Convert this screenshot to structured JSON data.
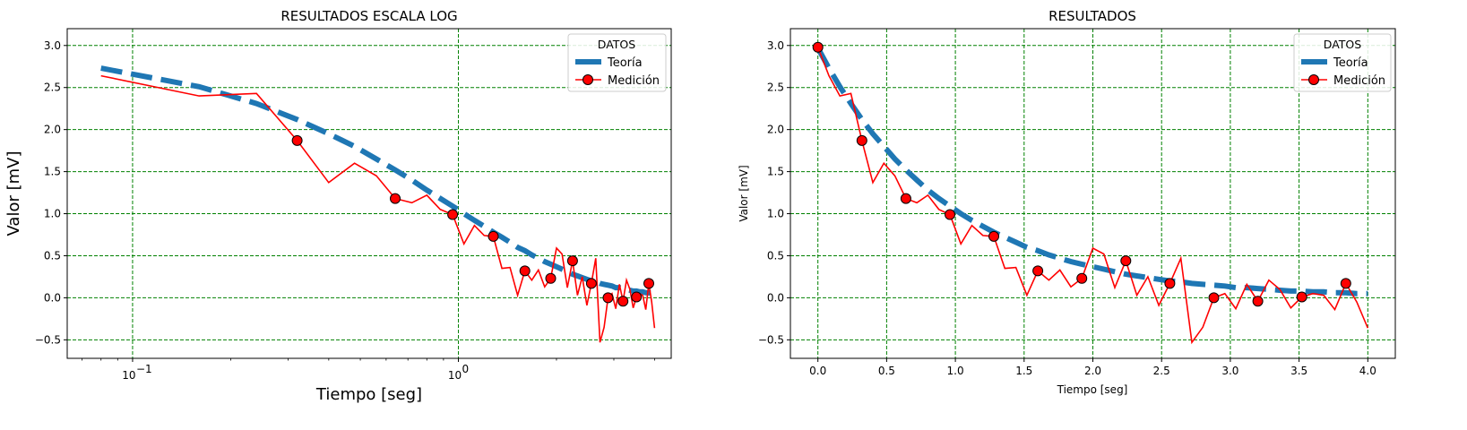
{
  "chart_data": [
    {
      "type": "line",
      "title": "RESULTADOS ESCALA LOG",
      "xlabel": "Tiempo [seg]",
      "ylabel": "Valor [mV]",
      "xscale": "log",
      "xlim": [
        0.063,
        4.5
      ],
      "ylim": [
        -0.72,
        3.2
      ],
      "xticks": [
        0.1,
        1
      ],
      "xtick_labels": [
        "10",
        "10"
      ],
      "xtick_exponents": [
        "−1",
        "0"
      ],
      "yticks": [
        -0.5,
        0.0,
        0.5,
        1.0,
        1.5,
        2.0,
        2.5,
        3.0
      ],
      "ytick_labels": [
        "−0.5",
        "0.0",
        "0.5",
        "1.0",
        "1.5",
        "2.0",
        "2.5",
        "3.0"
      ],
      "grid": true,
      "legend": {
        "title": "DATOS",
        "position": "top-right",
        "entries": [
          "Teoría",
          "Medición"
        ]
      }
    },
    {
      "type": "line",
      "title": "RESULTADOS",
      "xlabel": "Tiempo [seg]",
      "ylabel": "Valor [mV]",
      "xscale": "linear",
      "xlim": [
        -0.2,
        4.2
      ],
      "ylim": [
        -0.72,
        3.2
      ],
      "xticks": [
        0.0,
        0.5,
        1.0,
        1.5,
        2.0,
        2.5,
        3.0,
        3.5,
        4.0
      ],
      "xtick_labels": [
        "0.0",
        "0.5",
        "1.0",
        "1.5",
        "2.0",
        "2.5",
        "3.0",
        "3.5",
        "4.0"
      ],
      "yticks": [
        -0.5,
        0.0,
        0.5,
        1.0,
        1.5,
        2.0,
        2.5,
        3.0
      ],
      "ytick_labels": [
        "−0.5",
        "0.0",
        "0.5",
        "1.0",
        "1.5",
        "2.0",
        "2.5",
        "3.0"
      ],
      "grid": true,
      "legend": {
        "title": "DATOS",
        "position": "top-right",
        "entries": [
          "Teoría",
          "Medición"
        ]
      }
    }
  ],
  "series": {
    "teoria": {
      "name": "Teoría",
      "color": "#1f77b4",
      "x": [
        0.0,
        0.08,
        0.16,
        0.24,
        0.32,
        0.4,
        0.48,
        0.56,
        0.64,
        0.72,
        0.8,
        0.88,
        0.96,
        1.04,
        1.12,
        1.2,
        1.28,
        1.36,
        1.44,
        1.52,
        1.6,
        1.68,
        1.76,
        1.84,
        1.92,
        2.0,
        2.08,
        2.16,
        2.24,
        2.32,
        2.4,
        2.48,
        2.56,
        2.64,
        2.72,
        2.8,
        2.88,
        2.96,
        3.04,
        3.12,
        3.2,
        3.28,
        3.36,
        3.44,
        3.52,
        3.6,
        3.68,
        3.76,
        3.84,
        3.92,
        4.0
      ],
      "y": [
        2.97,
        2.73,
        2.51,
        2.31,
        2.12,
        1.95,
        1.8,
        1.65,
        1.52,
        1.4,
        1.28,
        1.18,
        1.09,
        1.0,
        0.92,
        0.85,
        0.78,
        0.72,
        0.66,
        0.6,
        0.56,
        0.51,
        0.47,
        0.43,
        0.4,
        0.37,
        0.34,
        0.31,
        0.28,
        0.26,
        0.24,
        0.22,
        0.2,
        0.19,
        0.17,
        0.16,
        0.15,
        0.14,
        0.12,
        0.12,
        0.11,
        0.1,
        0.09,
        0.08,
        0.08,
        0.07,
        0.07,
        0.06,
        0.06,
        0.05,
        0.05
      ]
    },
    "medicion": {
      "name": "Medición",
      "color": "#ff0000",
      "marker_face": "#ff0000",
      "marker_edge": "#000000",
      "x": [
        0.0,
        0.08,
        0.16,
        0.24,
        0.32,
        0.4,
        0.48,
        0.56,
        0.64,
        0.72,
        0.8,
        0.88,
        0.96,
        1.04,
        1.12,
        1.2,
        1.28,
        1.36,
        1.44,
        1.52,
        1.6,
        1.68,
        1.76,
        1.84,
        1.92,
        2.0,
        2.08,
        2.16,
        2.24,
        2.32,
        2.4,
        2.48,
        2.56,
        2.64,
        2.72,
        2.8,
        2.88,
        2.96,
        3.04,
        3.12,
        3.2,
        3.28,
        3.36,
        3.44,
        3.52,
        3.6,
        3.68,
        3.76,
        3.84,
        3.92,
        4.0
      ],
      "y": [
        2.98,
        2.64,
        2.4,
        2.43,
        1.87,
        1.37,
        1.6,
        1.45,
        1.18,
        1.13,
        1.22,
        1.05,
        0.99,
        0.64,
        0.86,
        0.74,
        0.73,
        0.35,
        0.36,
        0.03,
        0.32,
        0.21,
        0.33,
        0.13,
        0.23,
        0.59,
        0.52,
        0.12,
        0.44,
        0.03,
        0.25,
        -0.09,
        0.17,
        0.47,
        -0.53,
        -0.35,
        0.0,
        0.05,
        -0.13,
        0.16,
        -0.04,
        0.21,
        0.1,
        -0.12,
        0.01,
        0.05,
        0.03,
        -0.14,
        0.17,
        -0.05,
        -0.36
      ],
      "markers_every": 4
    }
  }
}
